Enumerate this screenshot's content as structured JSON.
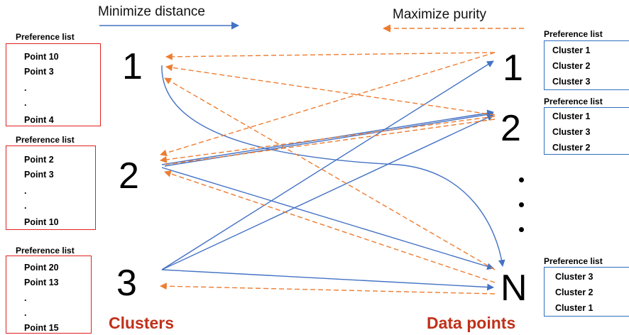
{
  "headings": {
    "left": "Minimize distance",
    "right": "Maximize purity"
  },
  "colors": {
    "blue_arrow": "#4472c4",
    "orange_arrow": "#ed7d31",
    "red_box": "#e0201f",
    "blue_box": "#2f6fbf",
    "group_label": "#c0311a"
  },
  "clusters": {
    "group_label": "Clusters",
    "nodes": [
      {
        "label": "1",
        "pref_title": "Preference list",
        "pref_items": [
          "Point 10",
          "Point 3",
          ".",
          ".",
          "Point 4"
        ]
      },
      {
        "label": "2",
        "pref_title": "Preference list",
        "pref_items": [
          "Point 2",
          "Point 3",
          ".",
          ".",
          "Point 10"
        ]
      },
      {
        "label": "3",
        "pref_title": "Preference list",
        "pref_items": [
          "Point 20",
          "Point 13",
          ".",
          ".",
          "Point 15"
        ]
      }
    ]
  },
  "data_points": {
    "group_label": "Data points",
    "nodes": [
      {
        "label": "1",
        "pref_title": "Preference list",
        "pref_items": [
          "Cluster 1",
          "Cluster 2",
          "Cluster 3"
        ]
      },
      {
        "label": "2",
        "pref_title": "Preference list",
        "pref_items": [
          "Cluster 1",
          "Cluster 3",
          "Cluster 2"
        ]
      },
      {
        "label": "N",
        "pref_title": "Preference list",
        "pref_items": [
          "Cluster 3",
          "Cluster 2",
          "Cluster 1"
        ]
      }
    ]
  }
}
